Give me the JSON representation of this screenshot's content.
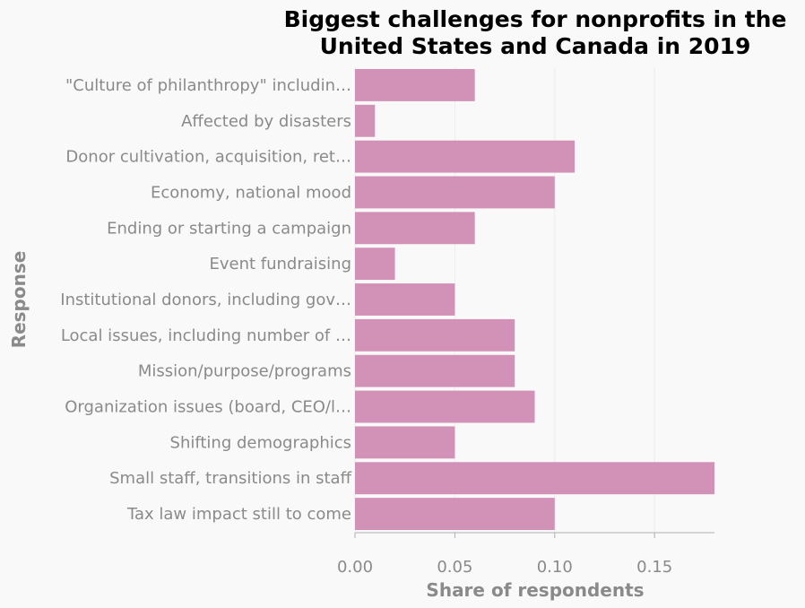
{
  "chart_data": {
    "type": "bar",
    "orientation": "horizontal",
    "title": "Biggest challenges for nonprofits in the United States and Canada in 2019",
    "title_lines": [
      "Biggest challenges for nonprofits in the",
      "United States and Canada in 2019"
    ],
    "xlabel": "Share of respondents",
    "ylabel": "Response",
    "categories": [
      "\"Culture of philanthropy\" includin…",
      "Affected by disasters",
      "Donor cultivation, acquisition, ret…",
      "Economy, national mood",
      "Ending or starting a campaign",
      "Event fundraising",
      "Institutional donors, including gov…",
      "Local issues, including number of …",
      "Mission/purpose/programs",
      "Organization issues (board, CEO/l…",
      "Shifting demographics",
      "Small staff, transitions in staff",
      "Tax law impact still to come"
    ],
    "values": [
      0.06,
      0.01,
      0.11,
      0.1,
      0.06,
      0.02,
      0.05,
      0.08,
      0.08,
      0.09,
      0.05,
      0.18,
      0.1
    ],
    "xlim": [
      0,
      0.18
    ],
    "xticks": [
      0.0,
      0.05,
      0.1,
      0.15
    ],
    "xtick_labels": [
      "0.00",
      "0.05",
      "0.10",
      "0.15"
    ],
    "grid": "vertical",
    "legend": "none",
    "bar_color": "#d291b6"
  }
}
